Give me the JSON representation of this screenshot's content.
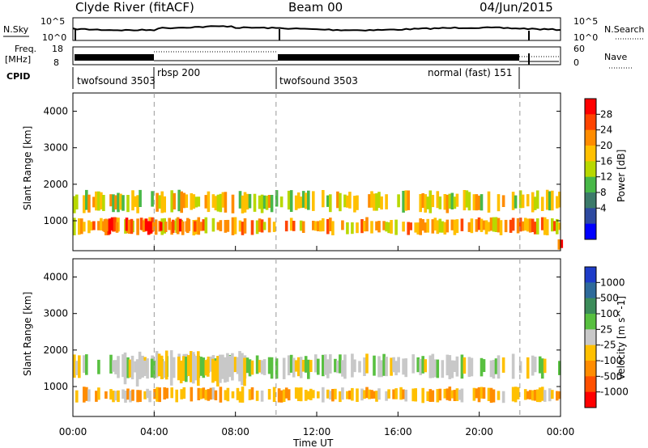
{
  "header": {
    "station": "Clyde River (fitACF)",
    "beam": "Beam 00",
    "date": "04/Jun/2015"
  },
  "panels": {
    "nsky": {
      "left_label": "N.Sky",
      "right_label": "N.Search",
      "left_ticks": [
        "10^5",
        "10^0"
      ],
      "right_ticks": [
        "10^5",
        "10^0"
      ]
    },
    "freq": {
      "left_label_1": "Freq.",
      "left_label_2": "[MHz]",
      "right_label": "Nave",
      "left_ticks": [
        "18",
        "8"
      ],
      "right_ticks": [
        "60",
        "0"
      ]
    },
    "cpid": {
      "label": "CPID",
      "modes": [
        {
          "name": "twofsound 3503",
          "start": 0.0,
          "end": 4.0
        },
        {
          "name": "rbsp 200",
          "start": 4.0,
          "end": 10.0
        },
        {
          "name": "twofsound 3503",
          "start": 10.0,
          "end": 22.0
        },
        {
          "name": "normal (fast) 151",
          "start": 18.8,
          "end": 22.0
        }
      ]
    }
  },
  "axes": {
    "ylabel": "Slant Range [km]",
    "xlabel": "Time UT",
    "x_ticks": [
      "00:00",
      "04:00",
      "08:00",
      "12:00",
      "16:00",
      "20:00",
      "00:00"
    ],
    "y_ticks": [
      "1000",
      "2000",
      "3000",
      "4000"
    ]
  },
  "colorbars": {
    "power": {
      "label": "Power [dB]",
      "ticks": [
        "28",
        "24",
        "20",
        "16",
        "12",
        "8",
        "4"
      ],
      "colors": [
        "#ff0000",
        "#ff4400",
        "#ff8c00",
        "#ffc000",
        "#b8d800",
        "#48b848",
        "#3c7a6a",
        "#2e4aa0",
        "#0000ff"
      ]
    },
    "velocity": {
      "label": "Velocity [m s^-1]",
      "ticks": [
        "1000",
        "500",
        "100",
        "25",
        "-25",
        "-100",
        "-500",
        "-1000"
      ],
      "colors": [
        "#1e3cc8",
        "#2e6a9a",
        "#3c8c5a",
        "#58c040",
        "#c8c8c8",
        "#ffc000",
        "#ff8c00",
        "#ff5000",
        "#ff0000"
      ]
    }
  },
  "chart_data": [
    {
      "type": "heatmap",
      "title": "Power",
      "xlabel": "Time UT",
      "ylabel": "Slant Range [km]",
      "xlim": [
        0,
        24
      ],
      "ylim": [
        180,
        4500
      ],
      "colorbar": "Power [dB]",
      "color_range": [
        0,
        32
      ],
      "bands": [
        {
          "range_km": [
            1200,
            1850
          ],
          "t_start": 0,
          "t_end": 24,
          "value_db": 18
        },
        {
          "range_km": [
            600,
            1100
          ],
          "t_start": 0,
          "t_end": 24,
          "value_db": 22
        },
        {
          "range_km": [
            600,
            1100
          ],
          "t_start": 1.5,
          "t_end": 6.0,
          "value_db": 28
        },
        {
          "range_km": [
            200,
            500
          ],
          "t_start": 23.5,
          "t_end": 24,
          "value_db": 30
        }
      ]
    },
    {
      "type": "heatmap",
      "title": "Velocity",
      "xlabel": "Time UT",
      "ylabel": "Slant Range [km]",
      "xlim": [
        0,
        24
      ],
      "ylim": [
        180,
        4500
      ],
      "colorbar": "Velocity [m s^-1]",
      "color_range": [
        -1000,
        1000
      ],
      "bands": [
        {
          "range_km": [
            1200,
            1900
          ],
          "t_start": 0,
          "t_end": 24,
          "value_ms": 0
        },
        {
          "range_km": [
            550,
            1000
          ],
          "t_start": 0,
          "t_end": 24,
          "value_ms": -300
        },
        {
          "range_km": [
            1000,
            2000
          ],
          "t_start": 2.5,
          "t_end": 8.5,
          "value_ms": -100
        }
      ]
    }
  ]
}
